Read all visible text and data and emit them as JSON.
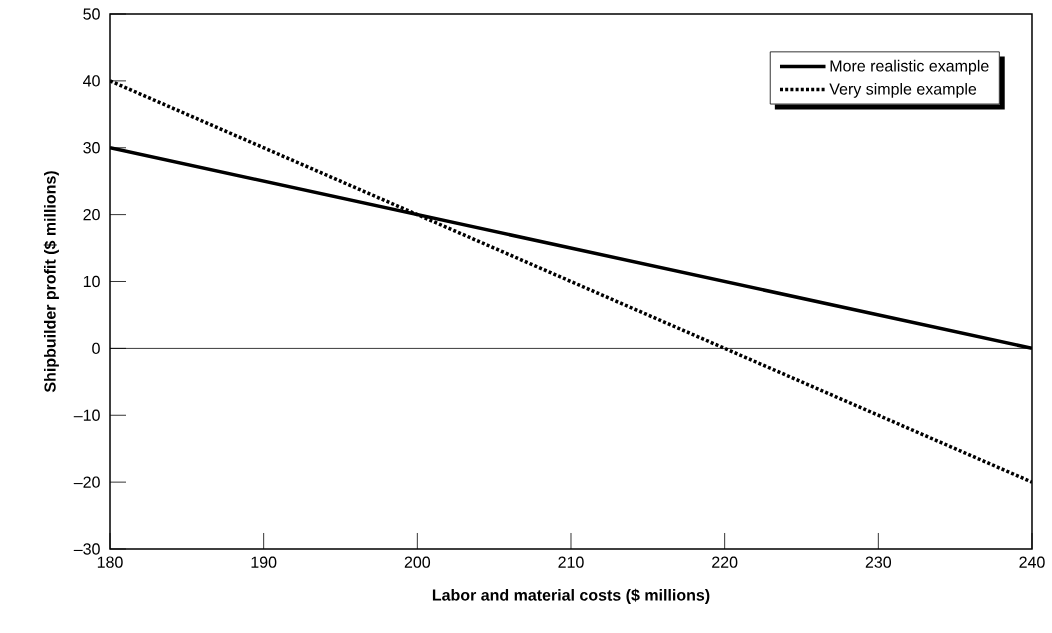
{
  "chart_data": {
    "type": "line",
    "xlabel": "Labor and material costs ($ millions)",
    "ylabel": "Shipbuilder profit ($ millions)",
    "xlim": [
      180,
      240
    ],
    "ylim": [
      -30,
      50
    ],
    "xticks": [
      180,
      190,
      200,
      210,
      220,
      230,
      240
    ],
    "yticks": [
      {
        "value": -30,
        "label": "–30"
      },
      {
        "value": -20,
        "label": "–20"
      },
      {
        "value": -10,
        "label": "–10"
      },
      0,
      10,
      20,
      30,
      40,
      50
    ],
    "x": [
      180,
      240
    ],
    "series": [
      {
        "name": "More realistic example",
        "color": "#000000",
        "line_style": "solid",
        "values": [
          30,
          0
        ]
      },
      {
        "name": "Very simple example",
        "color": "#000000",
        "line_style": "dotted",
        "values": [
          40,
          -20
        ]
      }
    ],
    "ref_lines": [
      {
        "axis": "y",
        "value": 0,
        "color": "#000000"
      }
    ],
    "legend": "top right",
    "grid": false,
    "marker": "none"
  }
}
